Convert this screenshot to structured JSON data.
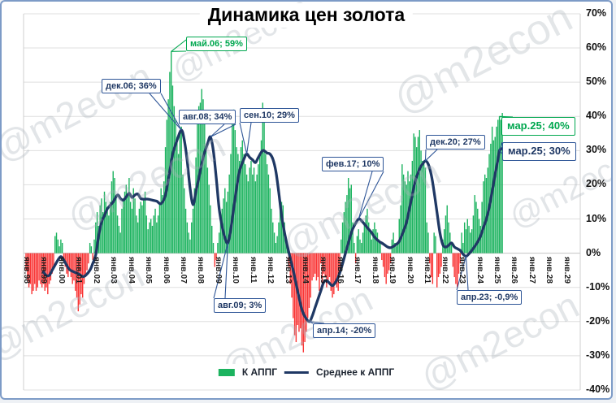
{
  "chart_data": {
    "type": "bar+line combo",
    "title": "Динамика цен золота",
    "watermark_text": "@m2econ",
    "y_axis": {
      "min": -40,
      "max": 70,
      "step": 10,
      "tick_labels": [
        "70%",
        "60%",
        "50%",
        "40%",
        "30%",
        "20%",
        "10%",
        "0%",
        "-10%",
        "-20%",
        "-30%",
        "-40%"
      ]
    },
    "x_axis": {
      "start_month": "янв.98",
      "end_month": "дек.29",
      "tick_labels": [
        "янв.98",
        "янв.99",
        "янв.00",
        "янв.01",
        "янв.02",
        "янв.03",
        "янв.04",
        "янв.05",
        "янв.06",
        "янв.07",
        "янв.08",
        "янв.09",
        "янв.10",
        "янв.11",
        "янв.12",
        "янв.13",
        "янв.14",
        "янв.15",
        "янв.16",
        "янв.17",
        "янв.18",
        "янв.19",
        "янв.20",
        "янв.21",
        "янв.22",
        "янв.23",
        "янв.24",
        "янв.25",
        "янв.26",
        "янв.27",
        "янв.28",
        "янв.29"
      ]
    },
    "colors": {
      "bar_positive": "#1cb35f",
      "bar_negative": "#f93434",
      "line": "#1f3864",
      "navy_label": "#1f3864",
      "navy_border": "#2e5597",
      "green_label": "#00a74f",
      "grid": "#dfdfdf",
      "zero_line": "#c4c4c4",
      "plot_border": "#cfcfcf"
    },
    "legend": [
      {
        "label": "К АППГ",
        "swatch": "bar"
      },
      {
        "label": "Среднее к АППГ",
        "swatch": "line"
      }
    ],
    "series": [
      {
        "name": "К АППГ",
        "type": "bar",
        "unit": "%",
        "start": "янв.98",
        "values_by_year": {
          "1998": [
            -5,
            -8,
            -10,
            -9,
            -12,
            -11,
            -9,
            -11,
            -10,
            -8,
            -9,
            -10
          ],
          "1999": [
            -9,
            -11,
            -10,
            -12,
            -9,
            -8,
            -6,
            -4,
            5,
            6,
            4,
            2
          ],
          "2000": [
            4,
            3,
            -2,
            -4,
            -6,
            -7,
            -5,
            -7,
            -9,
            -8,
            -11,
            -13
          ],
          "2001": [
            -17,
            -15,
            -12,
            -13,
            -9,
            -7,
            -5,
            -3,
            3,
            2,
            -2,
            4
          ],
          "2002": [
            9,
            12,
            8,
            14,
            16,
            12,
            18,
            15,
            13,
            11,
            15,
            21
          ],
          "2003": [
            24,
            22,
            17,
            11,
            8,
            6,
            13,
            16,
            18,
            20,
            17,
            22
          ],
          "2004": [
            15,
            13,
            19,
            16,
            11,
            9,
            13,
            15,
            14,
            16,
            18,
            11
          ],
          "2005": [
            7,
            9,
            10,
            8,
            11,
            13,
            9,
            11,
            15,
            19,
            17,
            21
          ],
          "2006": [
            31,
            39,
            45,
            53,
            59,
            49,
            43,
            39,
            34,
            29,
            36,
            37
          ],
          "2007": [
            23,
            19,
            13,
            9,
            6,
            4,
            9,
            13,
            19,
            28,
            40,
            43
          ],
          "2008": [
            44,
            48,
            45,
            38,
            30,
            25,
            20,
            14,
            8,
            3,
            -4,
            -2
          ],
          "2009": [
            3,
            6,
            10,
            13,
            16,
            19,
            15,
            18,
            23,
            29,
            39,
            42
          ],
          "2010": [
            36,
            31,
            29,
            27,
            31,
            33,
            29,
            26,
            23,
            21,
            25,
            27
          ],
          "2011": [
            23,
            25,
            21,
            23,
            26,
            29,
            33,
            44,
            41,
            29,
            26,
            23
          ],
          "2012": [
            19,
            13,
            9,
            6,
            3,
            5,
            9,
            13,
            15,
            14,
            9,
            5
          ],
          "2013": [
            3,
            -4,
            -9,
            -13,
            -19,
            -24,
            -26,
            -21,
            -23,
            -22,
            -27,
            -29
          ],
          "2014": [
            -26,
            -23,
            -19,
            -16,
            -13,
            -8,
            -7,
            -6,
            -8,
            -7,
            -11,
            -3
          ],
          "2015": [
            -9,
            -6,
            -7,
            -10,
            -8,
            -7,
            -11,
            -13,
            -12,
            -9,
            -10,
            -11
          ],
          "2016": [
            -6,
            4,
            9,
            12,
            15,
            17,
            22,
            19,
            20,
            9,
            3,
            -3
          ],
          "2017": [
            5,
            7,
            4,
            3,
            6,
            9,
            11,
            13,
            9,
            6,
            4,
            7
          ],
          "2018": [
            9,
            7,
            6,
            4,
            3,
            -2,
            -4,
            -7,
            -9,
            -6,
            -5,
            -3
          ],
          "2019": [
            4,
            6,
            3,
            2,
            3,
            10,
            14,
            26,
            23,
            21,
            20,
            24
          ],
          "2020": [
            21,
            23,
            27,
            35,
            34,
            31,
            34,
            36,
            30,
            27,
            26,
            25
          ],
          "2021": [
            9,
            6,
            -3,
            -7,
            -9,
            6,
            5,
            -10,
            -7,
            -6,
            -4,
            4
          ],
          "2022": [
            7,
            11,
            14,
            9,
            6,
            3,
            -4,
            -7,
            -9,
            -10,
            -6,
            -3
          ],
          "2023": [
            6,
            3,
            9,
            7,
            10,
            8,
            6,
            7,
            11,
            17,
            15,
            13
          ],
          "2024": [
            10,
            8,
            15,
            21,
            23,
            22,
            25,
            29,
            32,
            37,
            33,
            34
          ],
          "2025": [
            37,
            39,
            40,
            39,
            41
          ]
        }
      },
      {
        "name": "Среднее к АППГ",
        "type": "line",
        "unit": "%",
        "note": "points are [month index from янв.98, value %]",
        "points": [
          [
            12,
            -5.5
          ],
          [
            14,
            -6.5
          ],
          [
            16,
            -6.5
          ],
          [
            18,
            -5
          ],
          [
            20,
            -3.5
          ],
          [
            22,
            -2
          ],
          [
            24,
            -1
          ],
          [
            26,
            -2
          ],
          [
            28,
            -3.5
          ],
          [
            30,
            -4.8
          ],
          [
            33,
            -5.5
          ],
          [
            36,
            -6
          ],
          [
            39,
            -6.8
          ],
          [
            41,
            -6.5
          ],
          [
            44,
            -5
          ],
          [
            46,
            -3
          ],
          [
            48,
            -0.5
          ],
          [
            50,
            5
          ],
          [
            52,
            9
          ],
          [
            54,
            11
          ],
          [
            56,
            13
          ],
          [
            58,
            14
          ],
          [
            60,
            15
          ],
          [
            63,
            17
          ],
          [
            65,
            16
          ],
          [
            67,
            15.5
          ],
          [
            69,
            16.5
          ],
          [
            71,
            17.5
          ],
          [
            73,
            16.3
          ],
          [
            75,
            17
          ],
          [
            77,
            17.3
          ],
          [
            79,
            16
          ],
          [
            81,
            15.8
          ],
          [
            84,
            15.8
          ],
          [
            87,
            15.5
          ],
          [
            90,
            15.2
          ],
          [
            93,
            14.5
          ],
          [
            96,
            17
          ],
          [
            99,
            24
          ],
          [
            101,
            29
          ],
          [
            104,
            33
          ],
          [
            107,
            36
          ],
          [
            109,
            33
          ],
          [
            111,
            27
          ],
          [
            113,
            19
          ],
          [
            115,
            14.2
          ],
          [
            117,
            18
          ],
          [
            119,
            22
          ],
          [
            122,
            28
          ],
          [
            125,
            32
          ],
          [
            127,
            34
          ],
          [
            129,
            30
          ],
          [
            131,
            22
          ],
          [
            133,
            13
          ],
          [
            135,
            8
          ],
          [
            137,
            4.5
          ],
          [
            139,
            3
          ],
          [
            141,
            7
          ],
          [
            143,
            13
          ],
          [
            145,
            19
          ],
          [
            147,
            24
          ],
          [
            150,
            27.5
          ],
          [
            152,
            29
          ],
          [
            154,
            28
          ],
          [
            156,
            27.3
          ],
          [
            158,
            26.5
          ],
          [
            160,
            28
          ],
          [
            163,
            30
          ],
          [
            166,
            29.3
          ],
          [
            168,
            29
          ],
          [
            170,
            27.5
          ],
          [
            172,
            24
          ],
          [
            174,
            18
          ],
          [
            176,
            11
          ],
          [
            178,
            6
          ],
          [
            180,
            2
          ],
          [
            182,
            -1.5
          ],
          [
            184,
            -5
          ],
          [
            186,
            -9
          ],
          [
            188,
            -13
          ],
          [
            190,
            -16.5
          ],
          [
            192,
            -18.5
          ],
          [
            195,
            -20
          ],
          [
            197,
            -18.5
          ],
          [
            199,
            -16
          ],
          [
            201,
            -13.5
          ],
          [
            203,
            -11
          ],
          [
            205,
            -8.5
          ],
          [
            207,
            -8
          ],
          [
            209,
            -8.8
          ],
          [
            211,
            -9.5
          ],
          [
            213,
            -8.6
          ],
          [
            215,
            -7
          ],
          [
            217,
            -4.5
          ],
          [
            220,
            0
          ],
          [
            222,
            3
          ],
          [
            224,
            6
          ],
          [
            226,
            8
          ],
          [
            229,
            10
          ],
          [
            231,
            9.5
          ],
          [
            233,
            8.5
          ],
          [
            236,
            7
          ],
          [
            238,
            6
          ],
          [
            240,
            4.7
          ],
          [
            243,
            3.5
          ],
          [
            246,
            2.7
          ],
          [
            249,
            1.8
          ],
          [
            251,
            1.6
          ],
          [
            253,
            2
          ],
          [
            255,
            2.6
          ],
          [
            257,
            3.5
          ],
          [
            260,
            6.5
          ],
          [
            262,
            9
          ],
          [
            264,
            13
          ],
          [
            266,
            17
          ],
          [
            268,
            21
          ],
          [
            270,
            23.5
          ],
          [
            272,
            25.5
          ],
          [
            273,
            26
          ],
          [
            275,
            27
          ],
          [
            277,
            26
          ],
          [
            279,
            23
          ],
          [
            281,
            18
          ],
          [
            283,
            12
          ],
          [
            285,
            6
          ],
          [
            287,
            2.5
          ],
          [
            289,
            1.8
          ],
          [
            291,
            2.3
          ],
          [
            293,
            3
          ],
          [
            295,
            1.8
          ],
          [
            297,
            1.3
          ],
          [
            299,
            0.8
          ],
          [
            301,
            -0.3
          ],
          [
            303,
            -0.9
          ],
          [
            305,
            -0.2
          ],
          [
            307,
            0.8
          ],
          [
            309,
            2
          ],
          [
            311,
            3.3
          ],
          [
            313,
            5
          ],
          [
            315,
            7.5
          ],
          [
            317,
            10
          ],
          [
            319,
            13.5
          ],
          [
            321,
            18
          ],
          [
            323,
            23
          ],
          [
            325,
            27.5
          ],
          [
            326,
            30
          ],
          [
            328,
            30.6
          ]
        ]
      }
    ],
    "annotations": [
      {
        "label": "май.06; 59%",
        "series": "К АППГ",
        "month": 100,
        "value": 59,
        "style": "green",
        "large": false,
        "box": [
          227,
          43
        ]
      },
      {
        "label": "дек.06; 36%",
        "series": "Среднее к АППГ",
        "month": 107,
        "value": 36,
        "style": "navy",
        "large": false,
        "box": [
          123,
          95
        ]
      },
      {
        "label": "авг.08; 34%",
        "series": "Среднее к АППГ",
        "month": 127,
        "value": 34,
        "style": "navy",
        "large": false,
        "box": [
          218,
          133
        ]
      },
      {
        "label": "сен.10; 29%",
        "series": "Среднее к АППГ",
        "month": 152,
        "value": 29,
        "style": "navy",
        "large": false,
        "box": [
          293,
          131
        ]
      },
      {
        "label": "авг.09; 3%",
        "series": "Среднее к АППГ",
        "month": 139,
        "value": 3,
        "style": "navy",
        "large": false,
        "box": [
          261,
          365
        ]
      },
      {
        "label": "апр.14; -20%",
        "series": "Среднее к АППГ",
        "month": 195,
        "value": -20,
        "style": "navy",
        "large": false,
        "box": [
          383,
          396
        ]
      },
      {
        "label": "фев.17; 10%",
        "series": "Среднее к АППГ",
        "month": 229,
        "value": 10,
        "style": "navy",
        "large": false,
        "box": [
          394,
          191
        ]
      },
      {
        "label": "дек.20; 27%",
        "series": "Среднее к АППГ",
        "month": 275,
        "value": 27,
        "style": "navy",
        "large": false,
        "box": [
          522,
          164
        ]
      },
      {
        "label": "мар.25; 40%",
        "series": "К АППГ",
        "month": 326,
        "value": 40,
        "style": "green",
        "large": true,
        "box": [
          615,
          142
        ]
      },
      {
        "label": "мар.25; 30%",
        "series": "Среднее к АППГ",
        "month": 326,
        "value": 30,
        "style": "navy",
        "large": true,
        "box": [
          616,
          173
        ]
      },
      {
        "label": "апр.23; -0,9%",
        "series": "Среднее к АППГ",
        "month": 303,
        "value": -0.9,
        "style": "navy",
        "large": false,
        "box": [
          560,
          355
        ]
      }
    ]
  }
}
